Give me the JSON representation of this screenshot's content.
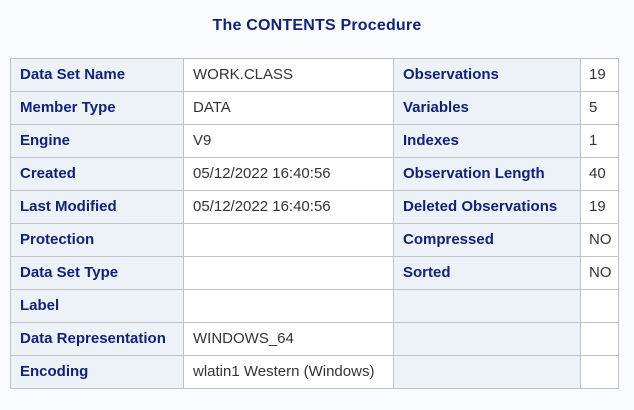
{
  "title": "The CONTENTS Procedure",
  "colors": {
    "accent_text": "#112277",
    "header_bg": "#edf2f9",
    "border": "#c1c1c1",
    "value_text": "#333333",
    "page_bg": "#fafbfe"
  },
  "table": {
    "rows": [
      {
        "label1": "Data Set Name",
        "value1": "WORK.CLASS",
        "label2": "Observations",
        "value2": "19"
      },
      {
        "label1": "Member Type",
        "value1": "DATA",
        "label2": "Variables",
        "value2": "5"
      },
      {
        "label1": "Engine",
        "value1": "V9",
        "label2": "Indexes",
        "value2": "1"
      },
      {
        "label1": "Created",
        "value1": "05/12/2022 16:40:56",
        "label2": "Observation Length",
        "value2": "40"
      },
      {
        "label1": "Last Modified",
        "value1": "05/12/2022 16:40:56",
        "label2": "Deleted Observations",
        "value2": "19"
      },
      {
        "label1": "Protection",
        "value1": "",
        "label2": "Compressed",
        "value2": "NO"
      },
      {
        "label1": "Data Set Type",
        "value1": "",
        "label2": "Sorted",
        "value2": "NO"
      },
      {
        "label1": "Label",
        "value1": "",
        "label2": "",
        "value2": ""
      },
      {
        "label1": "Data Representation",
        "value1": "WINDOWS_64",
        "label2": "",
        "value2": ""
      },
      {
        "label1": "Encoding",
        "value1": "wlatin1 Western (Windows)",
        "label2": "",
        "value2": ""
      }
    ]
  }
}
